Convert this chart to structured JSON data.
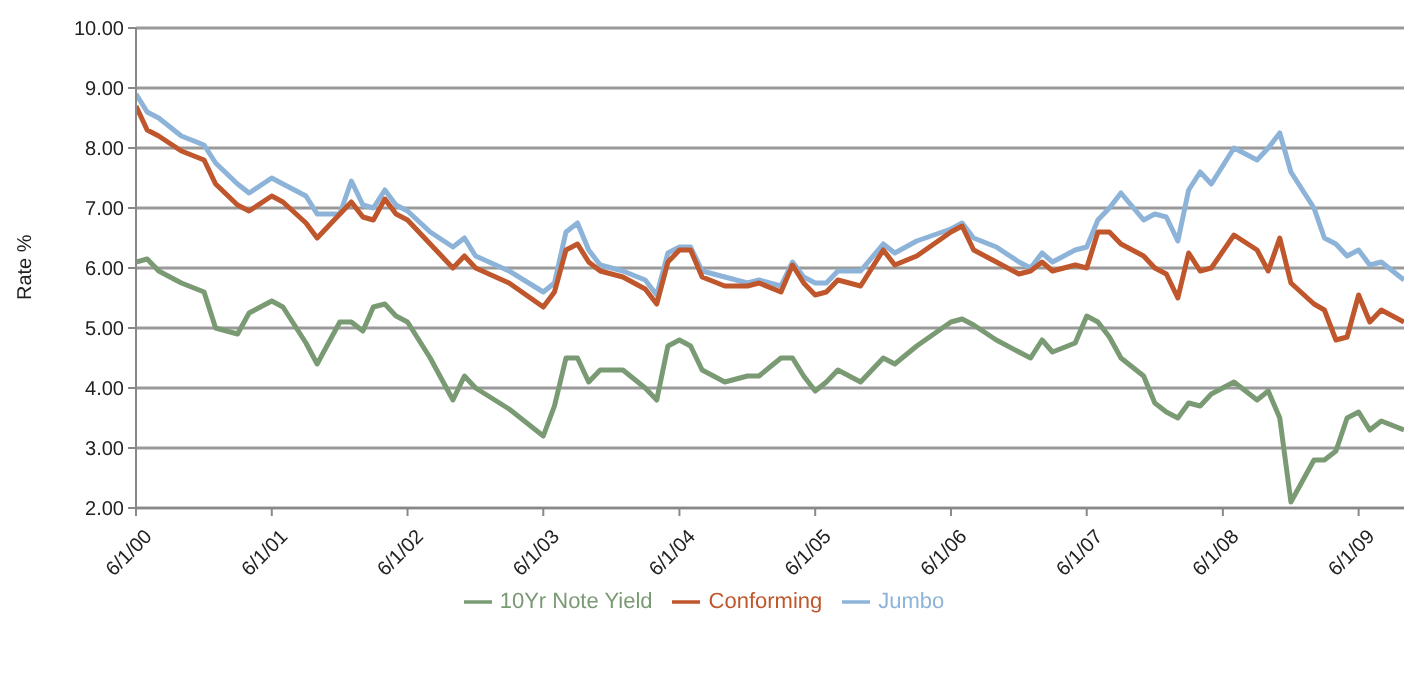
{
  "chart_data": {
    "type": "line",
    "ylabel": "Rate %",
    "x": [
      "2000-06",
      "2000-07",
      "2000-08",
      "2000-10",
      "2000-12",
      "2001-01",
      "2001-03",
      "2001-04",
      "2001-06",
      "2001-07",
      "2001-09",
      "2001-10",
      "2001-12",
      "2002-01",
      "2002-02",
      "2002-03",
      "2002-04",
      "2002-05",
      "2002-06",
      "2002-08",
      "2002-10",
      "2002-11",
      "2002-12",
      "2003-03",
      "2003-06",
      "2003-07",
      "2003-08",
      "2003-09",
      "2003-10",
      "2003-11",
      "2004-01",
      "2004-03",
      "2004-04",
      "2004-05",
      "2004-06",
      "2004-07",
      "2004-08",
      "2004-10",
      "2004-12",
      "2005-01",
      "2005-03",
      "2005-04",
      "2005-05",
      "2005-06",
      "2005-07",
      "2005-08",
      "2005-10",
      "2005-12",
      "2006-01",
      "2006-03",
      "2006-06",
      "2006-07",
      "2006-08",
      "2006-10",
      "2006-12",
      "2007-01",
      "2007-02",
      "2007-03",
      "2007-05",
      "2007-06",
      "2007-07",
      "2007-08",
      "2007-09",
      "2007-11",
      "2007-12",
      "2008-01",
      "2008-02",
      "2008-03",
      "2008-04",
      "2008-05",
      "2008-07",
      "2008-09",
      "2008-10",
      "2008-11",
      "2008-12",
      "2009-02",
      "2009-03",
      "2009-04",
      "2009-05",
      "2009-06",
      "2009-07",
      "2009-08",
      "2009-10"
    ],
    "series": [
      {
        "name": "Jumbo",
        "color": "#8db4d8",
        "values": [
          8.9,
          8.6,
          8.5,
          8.2,
          8.05,
          7.75,
          7.4,
          7.25,
          7.5,
          7.4,
          7.2,
          6.9,
          6.9,
          7.45,
          7.05,
          7.0,
          7.3,
          7.05,
          6.95,
          6.6,
          6.35,
          6.5,
          6.2,
          5.95,
          5.6,
          5.75,
          6.6,
          6.75,
          6.3,
          6.05,
          5.95,
          5.8,
          5.55,
          6.25,
          6.35,
          6.35,
          5.95,
          5.85,
          5.75,
          5.8,
          5.7,
          6.1,
          5.85,
          5.75,
          5.75,
          5.95,
          5.95,
          6.4,
          6.25,
          6.45,
          6.65,
          6.75,
          6.5,
          6.35,
          6.1,
          6.0,
          6.25,
          6.1,
          6.3,
          6.35,
          6.8,
          7.0,
          7.25,
          6.8,
          6.9,
          6.85,
          6.45,
          7.3,
          7.6,
          7.4,
          8.0,
          7.8,
          8.0,
          8.25,
          7.6,
          7.0,
          6.5,
          6.4,
          6.2,
          6.3,
          6.05,
          6.1,
          5.8
        ]
      },
      {
        "name": "Conforming",
        "color": "#c0562b",
        "values": [
          8.7,
          8.3,
          8.2,
          7.95,
          7.8,
          7.4,
          7.05,
          6.95,
          7.2,
          7.1,
          6.75,
          6.5,
          6.9,
          7.1,
          6.85,
          6.8,
          7.15,
          6.9,
          6.8,
          6.4,
          6.0,
          6.2,
          6.0,
          5.75,
          5.35,
          5.6,
          6.3,
          6.4,
          6.1,
          5.95,
          5.85,
          5.65,
          5.4,
          6.1,
          6.3,
          6.3,
          5.85,
          5.7,
          5.7,
          5.75,
          5.6,
          6.05,
          5.75,
          5.55,
          5.6,
          5.8,
          5.7,
          6.3,
          6.05,
          6.2,
          6.6,
          6.7,
          6.3,
          6.1,
          5.9,
          5.95,
          6.1,
          5.95,
          6.05,
          6.0,
          6.6,
          6.6,
          6.4,
          6.2,
          6.0,
          5.9,
          5.5,
          6.25,
          5.95,
          6.0,
          6.55,
          6.3,
          5.95,
          6.5,
          5.75,
          5.4,
          5.3,
          4.8,
          4.85,
          5.55,
          5.1,
          5.3,
          5.1
        ]
      },
      {
        "name": "10Yr Note Yield",
        "color": "#7a9a73",
        "values": [
          6.1,
          6.15,
          5.95,
          5.75,
          5.6,
          5.0,
          4.9,
          5.25,
          5.45,
          5.35,
          4.75,
          4.4,
          5.1,
          5.1,
          4.95,
          5.35,
          5.4,
          5.2,
          5.1,
          4.5,
          3.8,
          4.2,
          4.0,
          3.65,
          3.2,
          3.7,
          4.5,
          4.5,
          4.1,
          4.3,
          4.3,
          4.0,
          3.8,
          4.7,
          4.8,
          4.7,
          4.3,
          4.1,
          4.2,
          4.2,
          4.5,
          4.5,
          4.2,
          3.95,
          4.1,
          4.3,
          4.1,
          4.5,
          4.4,
          4.7,
          5.1,
          5.15,
          5.05,
          4.8,
          4.6,
          4.5,
          4.8,
          4.6,
          4.75,
          5.2,
          5.1,
          4.85,
          4.5,
          4.2,
          3.75,
          3.6,
          3.5,
          3.75,
          3.7,
          3.9,
          4.1,
          3.8,
          3.95,
          3.5,
          2.1,
          2.8,
          2.8,
          2.95,
          3.5,
          3.6,
          3.3,
          3.45,
          3.3
        ]
      }
    ],
    "xlim": [
      "2000-06-01",
      "2009-10-01"
    ],
    "xticks": [
      {
        "value": "2000-06-01",
        "label": "6/1/00"
      },
      {
        "value": "2001-06-01",
        "label": "6/1/01"
      },
      {
        "value": "2002-06-01",
        "label": "6/1/02"
      },
      {
        "value": "2003-06-01",
        "label": "6/1/03"
      },
      {
        "value": "2004-06-01",
        "label": "6/1/04"
      },
      {
        "value": "2005-06-01",
        "label": "6/1/05"
      },
      {
        "value": "2006-06-01",
        "label": "6/1/06"
      },
      {
        "value": "2007-06-01",
        "label": "6/1/07"
      },
      {
        "value": "2008-06-01",
        "label": "6/1/08"
      },
      {
        "value": "2009-06-01",
        "label": "6/1/09"
      }
    ],
    "ylim": [
      2,
      10
    ],
    "yticks": [
      {
        "value": 2,
        "label": "2.00"
      },
      {
        "value": 3,
        "label": "3.00"
      },
      {
        "value": 4,
        "label": "4.00"
      },
      {
        "value": 5,
        "label": "5.00"
      },
      {
        "value": 6,
        "label": "6.00"
      },
      {
        "value": 7,
        "label": "7.00"
      },
      {
        "value": 8,
        "label": "8.00"
      },
      {
        "value": 9,
        "label": "9.00"
      },
      {
        "value": 10,
        "label": "10.00"
      }
    ],
    "grid": "y",
    "legend": "bottom",
    "marker": "none",
    "line_style": "solid"
  }
}
